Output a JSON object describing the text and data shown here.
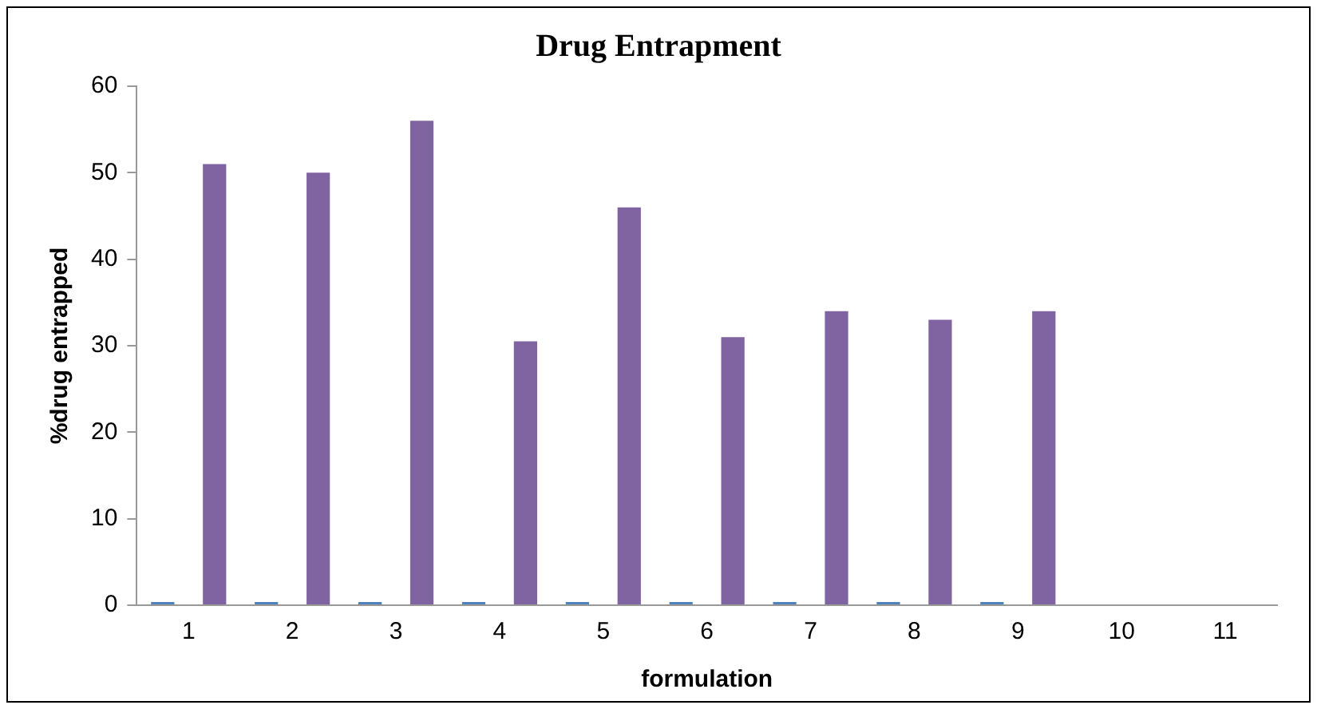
{
  "chart_data": {
    "type": "bar",
    "title": "Drug Entrapment",
    "xlabel": "formulation",
    "ylabel": "%drug entrapped",
    "categories": [
      "1",
      "2",
      "3",
      "4",
      "5",
      "6",
      "7",
      "8",
      "9",
      "10",
      "11"
    ],
    "series": [
      {
        "color": "#4f81bd",
        "values": [
          0,
          0,
          0,
          0,
          0,
          0,
          0,
          0,
          0,
          null,
          null
        ]
      },
      {
        "color": "#8064a2",
        "values": [
          51,
          50,
          56,
          30.5,
          46,
          31,
          34,
          33,
          34,
          null,
          null
        ]
      }
    ],
    "ylim": [
      0,
      60
    ],
    "yticks": [
      0,
      10,
      20,
      30,
      40,
      50,
      60
    ],
    "grid": false,
    "legend": false
  }
}
